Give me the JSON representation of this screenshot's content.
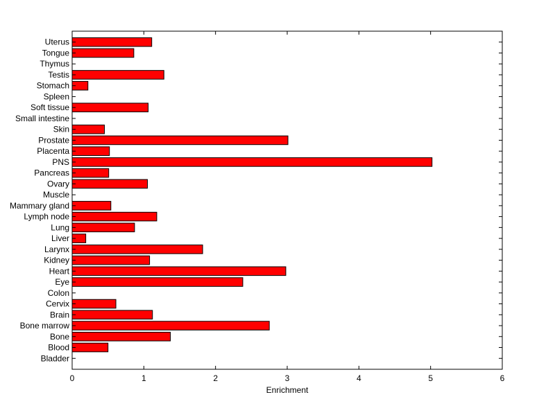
{
  "chart_data": {
    "type": "bar",
    "orientation": "horizontal",
    "title": "",
    "xlabel": "Enrichment",
    "ylabel": "",
    "xlim": [
      0,
      6
    ],
    "xticks": [
      "0",
      "1",
      "2",
      "3",
      "4",
      "5",
      "6"
    ],
    "grid": false,
    "bar_color": "#ff0000",
    "bar_edge_color": "#000000",
    "categories": [
      "Uterus",
      "Tongue",
      "Thymus",
      "Testis",
      "Stomach",
      "Spleen",
      "Soft tissue",
      "Small intestine",
      "Skin",
      "Prostate",
      "Placenta",
      "PNS",
      "Pancreas",
      "Ovary",
      "Muscle",
      "Mammary gland",
      "Lymph node",
      "Lung",
      "Liver",
      "Larynx",
      "Kidney",
      "Heart",
      "Eye",
      "Colon",
      "Cervix",
      "Brain",
      "Bone marrow",
      "Bone",
      "Blood",
      "Bladder"
    ],
    "values": [
      1.11,
      0.86,
      0,
      1.28,
      0.22,
      0,
      1.06,
      0,
      0.45,
      3.01,
      0.52,
      5.02,
      0.51,
      1.05,
      0,
      0.54,
      1.18,
      0.87,
      0.19,
      1.82,
      1.08,
      2.98,
      2.38,
      0,
      0.61,
      1.12,
      2.75,
      1.37,
      0.5,
      0
    ]
  }
}
